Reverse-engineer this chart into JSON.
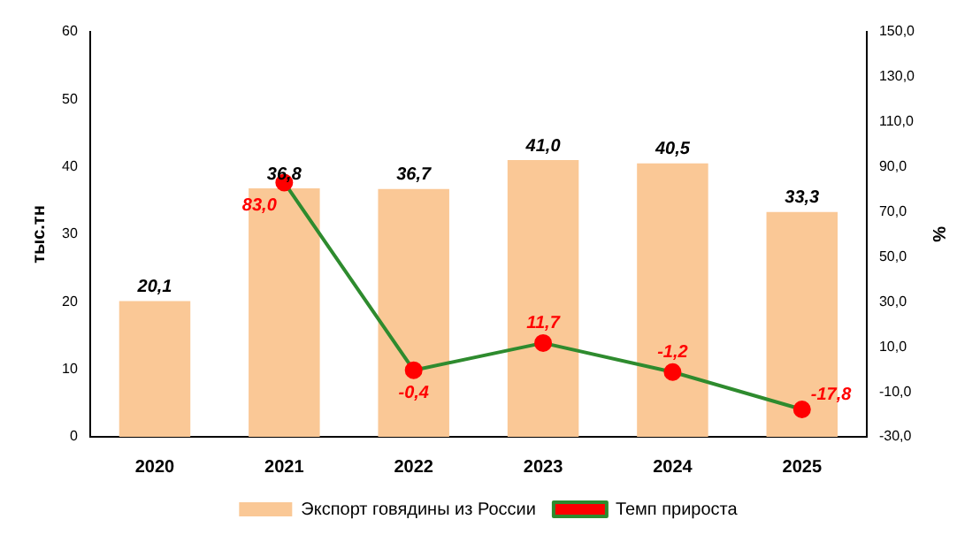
{
  "chart_data": {
    "type": "bar",
    "categories": [
      "2020",
      "2021",
      "2022",
      "2023",
      "2024",
      "2025"
    ],
    "series": [
      {
        "name": "Экспорт говядины из России",
        "color": "#fac896",
        "values": [
          20.1,
          36.8,
          36.7,
          41.0,
          40.5,
          33.3
        ],
        "value_labels": [
          "20,1",
          "36,8",
          "36,7",
          "41,0",
          "40,5",
          "33,3"
        ]
      },
      {
        "name": "Темп прироста",
        "type": "line",
        "axis": "y2",
        "color": "#2e8b2e",
        "values": [
          null,
          83.0,
          -0.4,
          11.7,
          -1.2,
          -17.8
        ],
        "value_labels": [
          null,
          "83,0",
          "-0,4",
          "11,7",
          "-1,2",
          "-17,8"
        ]
      }
    ],
    "ylabel": "тыс.тн",
    "y2label": "%",
    "ylim": [
      0,
      60
    ],
    "yticks": [
      0,
      10,
      20,
      30,
      40,
      50,
      60
    ],
    "y2lim": [
      -30,
      150
    ],
    "y2ticks": [
      {
        "value": -30,
        "label": "-30,0"
      },
      {
        "value": -10,
        "label": "-10,0"
      },
      {
        "value": 10,
        "label": "10,0"
      },
      {
        "value": 30,
        "label": "30,0"
      },
      {
        "value": 50,
        "label": "50,0"
      },
      {
        "value": 70,
        "label": "70,0"
      },
      {
        "value": 90,
        "label": "90,0"
      },
      {
        "value": 110,
        "label": "110,0"
      },
      {
        "value": 130,
        "label": "130,0"
      },
      {
        "value": 150,
        "label": "150,0"
      }
    ],
    "marker": "circle",
    "line_style": "solid",
    "grid": false,
    "legend": "bottom"
  }
}
